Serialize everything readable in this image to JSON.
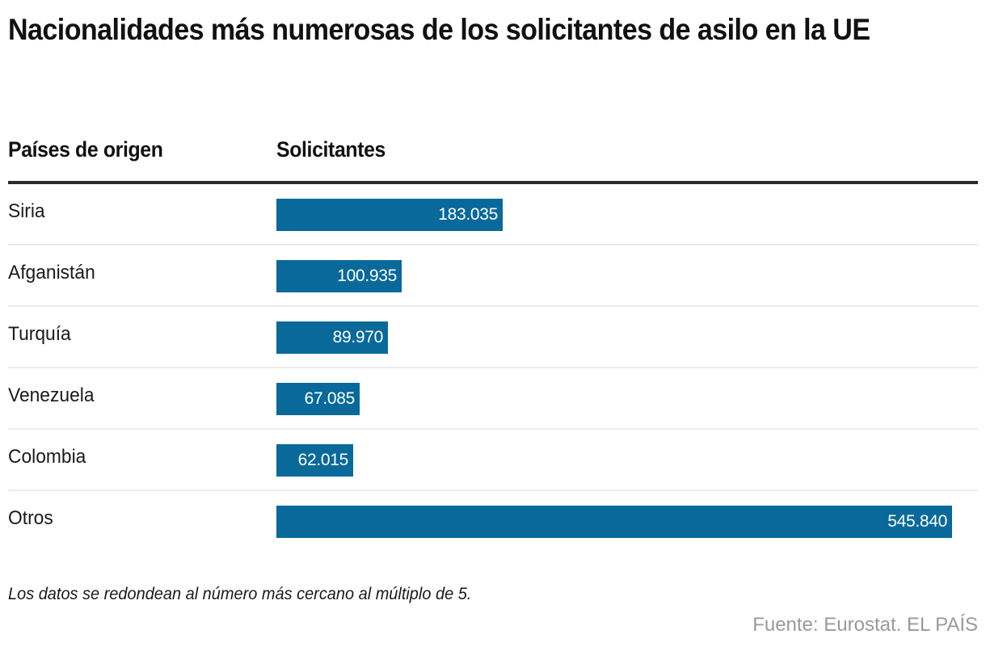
{
  "chart_data": {
    "type": "bar",
    "orientation": "horizontal",
    "title": "Nacionalidades más numerosas de los solicitantes de asilo en la UE",
    "column_headers": {
      "category": "Países de origen",
      "value": "Solicitantes"
    },
    "categories": [
      "Siria",
      "Afganistán",
      "Turquía",
      "Venezuela",
      "Colombia",
      "Otros"
    ],
    "values": [
      183035,
      100935,
      89970,
      67085,
      62015,
      545840
    ],
    "value_labels": [
      "183.035",
      "100.935",
      "89.970",
      "67.085",
      "62.015",
      "545.840"
    ],
    "xlim": [
      0,
      545840
    ],
    "grid": false,
    "bar_color": "#08699a",
    "note": "Los datos se redondean al número más cercano al múltiplo de 5.",
    "source": "Fuente: Eurostat. EL PAÍS"
  }
}
